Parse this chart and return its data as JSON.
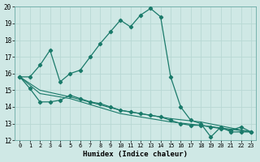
{
  "xlabel": "Humidex (Indice chaleur)",
  "xlim": [
    -0.5,
    23.5
  ],
  "ylim": [
    12,
    20
  ],
  "yticks": [
    12,
    13,
    14,
    15,
    16,
    17,
    18,
    19,
    20
  ],
  "xticks": [
    0,
    1,
    2,
    3,
    4,
    5,
    6,
    7,
    8,
    9,
    10,
    11,
    12,
    13,
    14,
    15,
    16,
    17,
    18,
    19,
    20,
    21,
    22,
    23
  ],
  "bg_color": "#cfe8e5",
  "line_color": "#1a7a6a",
  "grid_color": "#b8d8d4",
  "line1_x": [
    0,
    1,
    2,
    3,
    4,
    5,
    6,
    7,
    8,
    9,
    10,
    11,
    12,
    13,
    14,
    15,
    16,
    17,
    18,
    19,
    20,
    21,
    22,
    23
  ],
  "line1_y": [
    15.8,
    15.8,
    16.5,
    17.4,
    15.5,
    16.0,
    16.2,
    17.0,
    17.8,
    18.5,
    19.2,
    18.8,
    19.5,
    19.9,
    19.4,
    15.8,
    14.0,
    13.2,
    13.0,
    12.2,
    12.8,
    12.5,
    12.5,
    12.5
  ],
  "line2_x": [
    0,
    1,
    2,
    3,
    4,
    5,
    6,
    7,
    8,
    9,
    10,
    11,
    12,
    13,
    14,
    15,
    16,
    17,
    18,
    19,
    20,
    21,
    22,
    23
  ],
  "line2_y": [
    15.8,
    15.1,
    14.3,
    14.3,
    14.4,
    14.7,
    14.5,
    14.3,
    14.2,
    14.0,
    13.8,
    13.7,
    13.6,
    13.5,
    13.4,
    13.2,
    13.0,
    12.9,
    12.9,
    12.8,
    12.7,
    12.6,
    12.8,
    12.5
  ],
  "line3_x": [
    0,
    2,
    5,
    10,
    15,
    18,
    23
  ],
  "line3_y": [
    15.8,
    14.8,
    14.5,
    13.6,
    13.1,
    12.9,
    12.5
  ],
  "line4_x": [
    0,
    2,
    5,
    10,
    15,
    18,
    23
  ],
  "line4_y": [
    15.8,
    15.0,
    14.6,
    13.8,
    13.3,
    13.1,
    12.5
  ]
}
